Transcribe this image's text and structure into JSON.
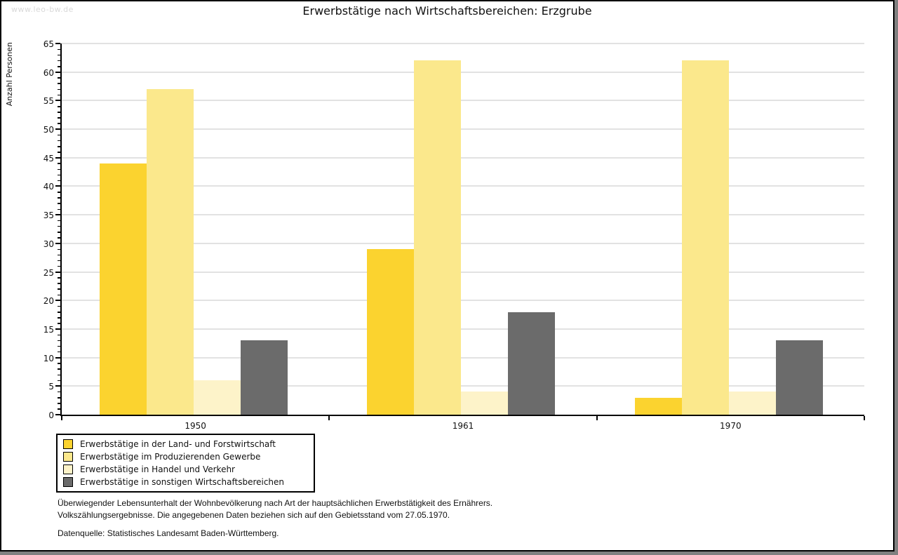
{
  "watermark": "www.leo-bw.de",
  "footnote": {
    "line1": "Überwiegender Lebensunterhalt der Wohnbevölkerung nach Art der hauptsächlichen Erwerbstätigkeit des Ernährers.",
    "line2": "Volkszählungsergebnisse. Die angegebenen Daten beziehen sich auf den Gebietsstand vom 27.05.1970.",
    "source": "Datenquelle: Statistisches Landesamt Baden-Württemberg."
  },
  "colors": {
    "grid": "#e2e2e2",
    "axis": "#000000",
    "watermark": "#d9d9d9",
    "frame_shadow": "#808080"
  },
  "chart_data": {
    "type": "bar",
    "title": "Erwerbstätige nach Wirtschaftsbereichen: Erzgrube",
    "xlabel": "",
    "ylabel": "Anzahl Personen",
    "categories": [
      "1950",
      "1961",
      "1970"
    ],
    "series": [
      {
        "name": "Erwerbstätige in der Land- und Forstwirtschaft",
        "color": "#fbd32f",
        "values": [
          44,
          29,
          3
        ]
      },
      {
        "name": "Erwerbstätige im Produzierenden Gewerbe",
        "color": "#fbe88c",
        "values": [
          57,
          62,
          62
        ]
      },
      {
        "name": "Erwerbstätige in Handel und Verkehr",
        "color": "#fdf3c9",
        "values": [
          6,
          4,
          4
        ]
      },
      {
        "name": "Erwerbstätige in sonstigen Wirtschaftsbereichen",
        "color": "#6b6b6b",
        "values": [
          13,
          18,
          13
        ]
      }
    ],
    "ylim": [
      0,
      65
    ],
    "ytick_step": 5,
    "minor_tick_step": 1,
    "grid": true,
    "legend_position": "bottom-left"
  }
}
